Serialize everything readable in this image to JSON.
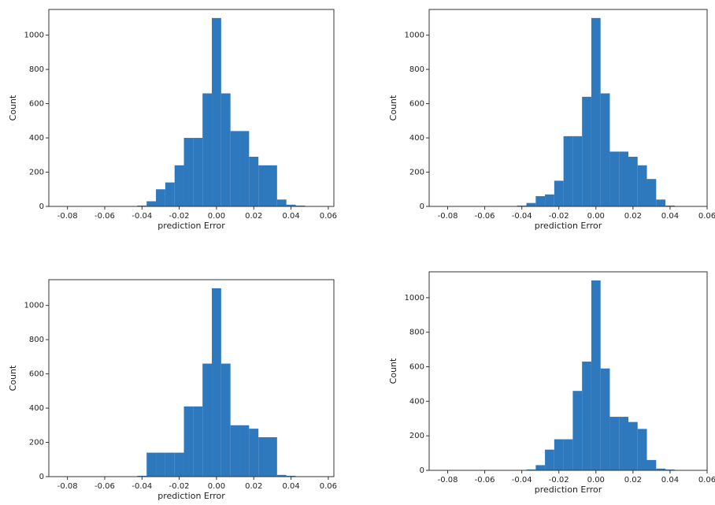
{
  "chart_data": [
    {
      "type": "histogram",
      "xlabel": "prediction Error",
      "ylabel": "Count",
      "color": "#2e78bd",
      "bins": [
        -0.0425,
        -0.0375,
        -0.0325,
        -0.0275,
        -0.0225,
        -0.0175,
        -0.0125,
        -0.0075,
        -0.0025,
        0.0025,
        0.0075,
        0.0125,
        0.0175,
        0.0225,
        0.0275,
        0.0325,
        0.0375,
        0.0425,
        0.0475
      ],
      "values": [
        5,
        30,
        100,
        140,
        240,
        400,
        400,
        660,
        1100,
        660,
        440,
        440,
        290,
        240,
        240,
        40,
        10,
        5
      ],
      "xlim": [
        -0.09,
        0.063
      ],
      "ylim": [
        0,
        1150
      ],
      "xticks": [
        -0.08,
        -0.06,
        -0.04,
        -0.02,
        {
          "value": 0,
          "label": "0.00"
        },
        0.02,
        0.04,
        0.06
      ],
      "yticks": [
        0,
        200,
        400,
        600,
        800,
        1000
      ]
    },
    {
      "type": "histogram",
      "xlabel": "prediction Error",
      "ylabel": "Count",
      "color": "#2e78bd",
      "bins": [
        -0.0425,
        -0.0375,
        -0.0325,
        -0.0275,
        -0.0225,
        -0.0175,
        -0.0125,
        -0.0075,
        -0.0025,
        0.0025,
        0.0075,
        0.0125,
        0.0175,
        0.0225,
        0.0275,
        0.0325,
        0.0375,
        0.0425,
        0.0475
      ],
      "values": [
        5,
        20,
        60,
        70,
        150,
        410,
        410,
        640,
        1100,
        660,
        320,
        320,
        290,
        240,
        160,
        40,
        5,
        0
      ],
      "xlim": [
        -0.09,
        0.06
      ],
      "ylim": [
        0,
        1150
      ],
      "xticks": [
        -0.08,
        -0.06,
        -0.04,
        -0.02,
        {
          "value": 0,
          "label": "0.00"
        },
        0.02,
        0.04,
        0.06
      ],
      "yticks": [
        0,
        200,
        400,
        600,
        800,
        1000
      ]
    },
    {
      "type": "histogram",
      "xlabel": "prediction Error",
      "ylabel": "Count",
      "color": "#2e78bd",
      "bins": [
        -0.0425,
        -0.0375,
        -0.0325,
        -0.0275,
        -0.0225,
        -0.0175,
        -0.0125,
        -0.0075,
        -0.0025,
        0.0025,
        0.0075,
        0.0125,
        0.0175,
        0.0225,
        0.0275,
        0.0325,
        0.0375,
        0.0425,
        0.0475
      ],
      "values": [
        5,
        140,
        140,
        140,
        140,
        410,
        410,
        660,
        1100,
        660,
        300,
        300,
        280,
        230,
        230,
        10,
        5,
        0
      ],
      "xlim": [
        -0.09,
        0.063
      ],
      "ylim": [
        0,
        1150
      ],
      "xticks": [
        -0.08,
        -0.06,
        -0.04,
        -0.02,
        {
          "value": 0,
          "label": "0.00"
        },
        0.02,
        0.04,
        0.06
      ],
      "yticks": [
        0,
        200,
        400,
        600,
        800,
        1000
      ]
    },
    {
      "type": "histogram",
      "xlabel": "prediction Error",
      "ylabel": "Count",
      "color": "#2e78bd",
      "bins": [
        -0.0425,
        -0.0375,
        -0.0325,
        -0.0275,
        -0.0225,
        -0.0175,
        -0.0125,
        -0.0075,
        -0.0025,
        0.0025,
        0.0075,
        0.0125,
        0.0175,
        0.0225,
        0.0275,
        0.0325,
        0.0375,
        0.0425,
        0.0475
      ],
      "values": [
        0,
        5,
        30,
        120,
        180,
        180,
        460,
        630,
        1100,
        590,
        310,
        310,
        280,
        240,
        60,
        10,
        5,
        0
      ],
      "xlim": [
        -0.09,
        0.06
      ],
      "ylim": [
        0,
        1150
      ],
      "xticks": [
        -0.08,
        -0.06,
        -0.04,
        -0.02,
        {
          "value": 0,
          "label": "0.00"
        },
        0.02,
        0.04,
        0.06
      ],
      "yticks": [
        0,
        200,
        400,
        600,
        800,
        1000
      ]
    }
  ]
}
